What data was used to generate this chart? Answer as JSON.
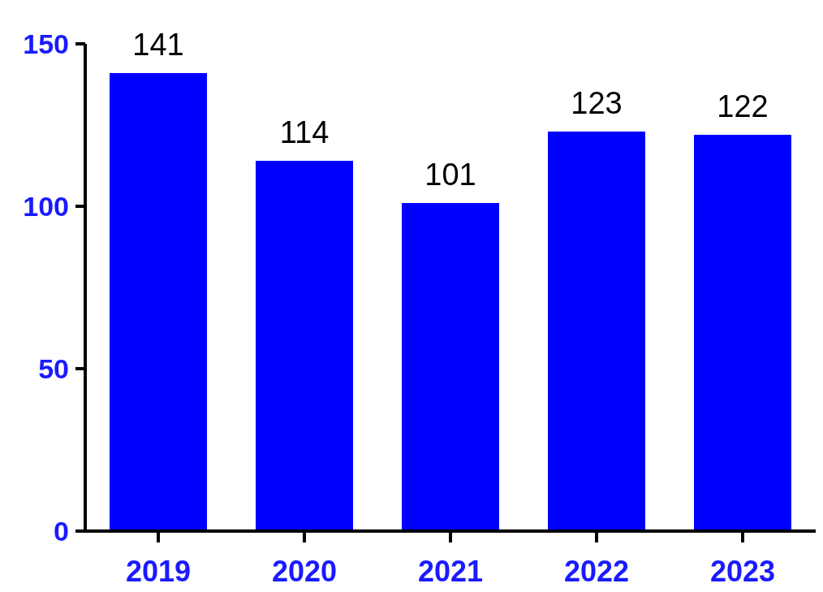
{
  "chart_data": {
    "type": "bar",
    "categories": [
      "2019",
      "2020",
      "2021",
      "2022",
      "2023"
    ],
    "values": [
      141,
      114,
      101,
      123,
      122
    ],
    "color": "#0000ff",
    "ylim": [
      0,
      150
    ],
    "yticks": [
      0,
      50,
      100,
      150
    ],
    "data_labels": true
  }
}
